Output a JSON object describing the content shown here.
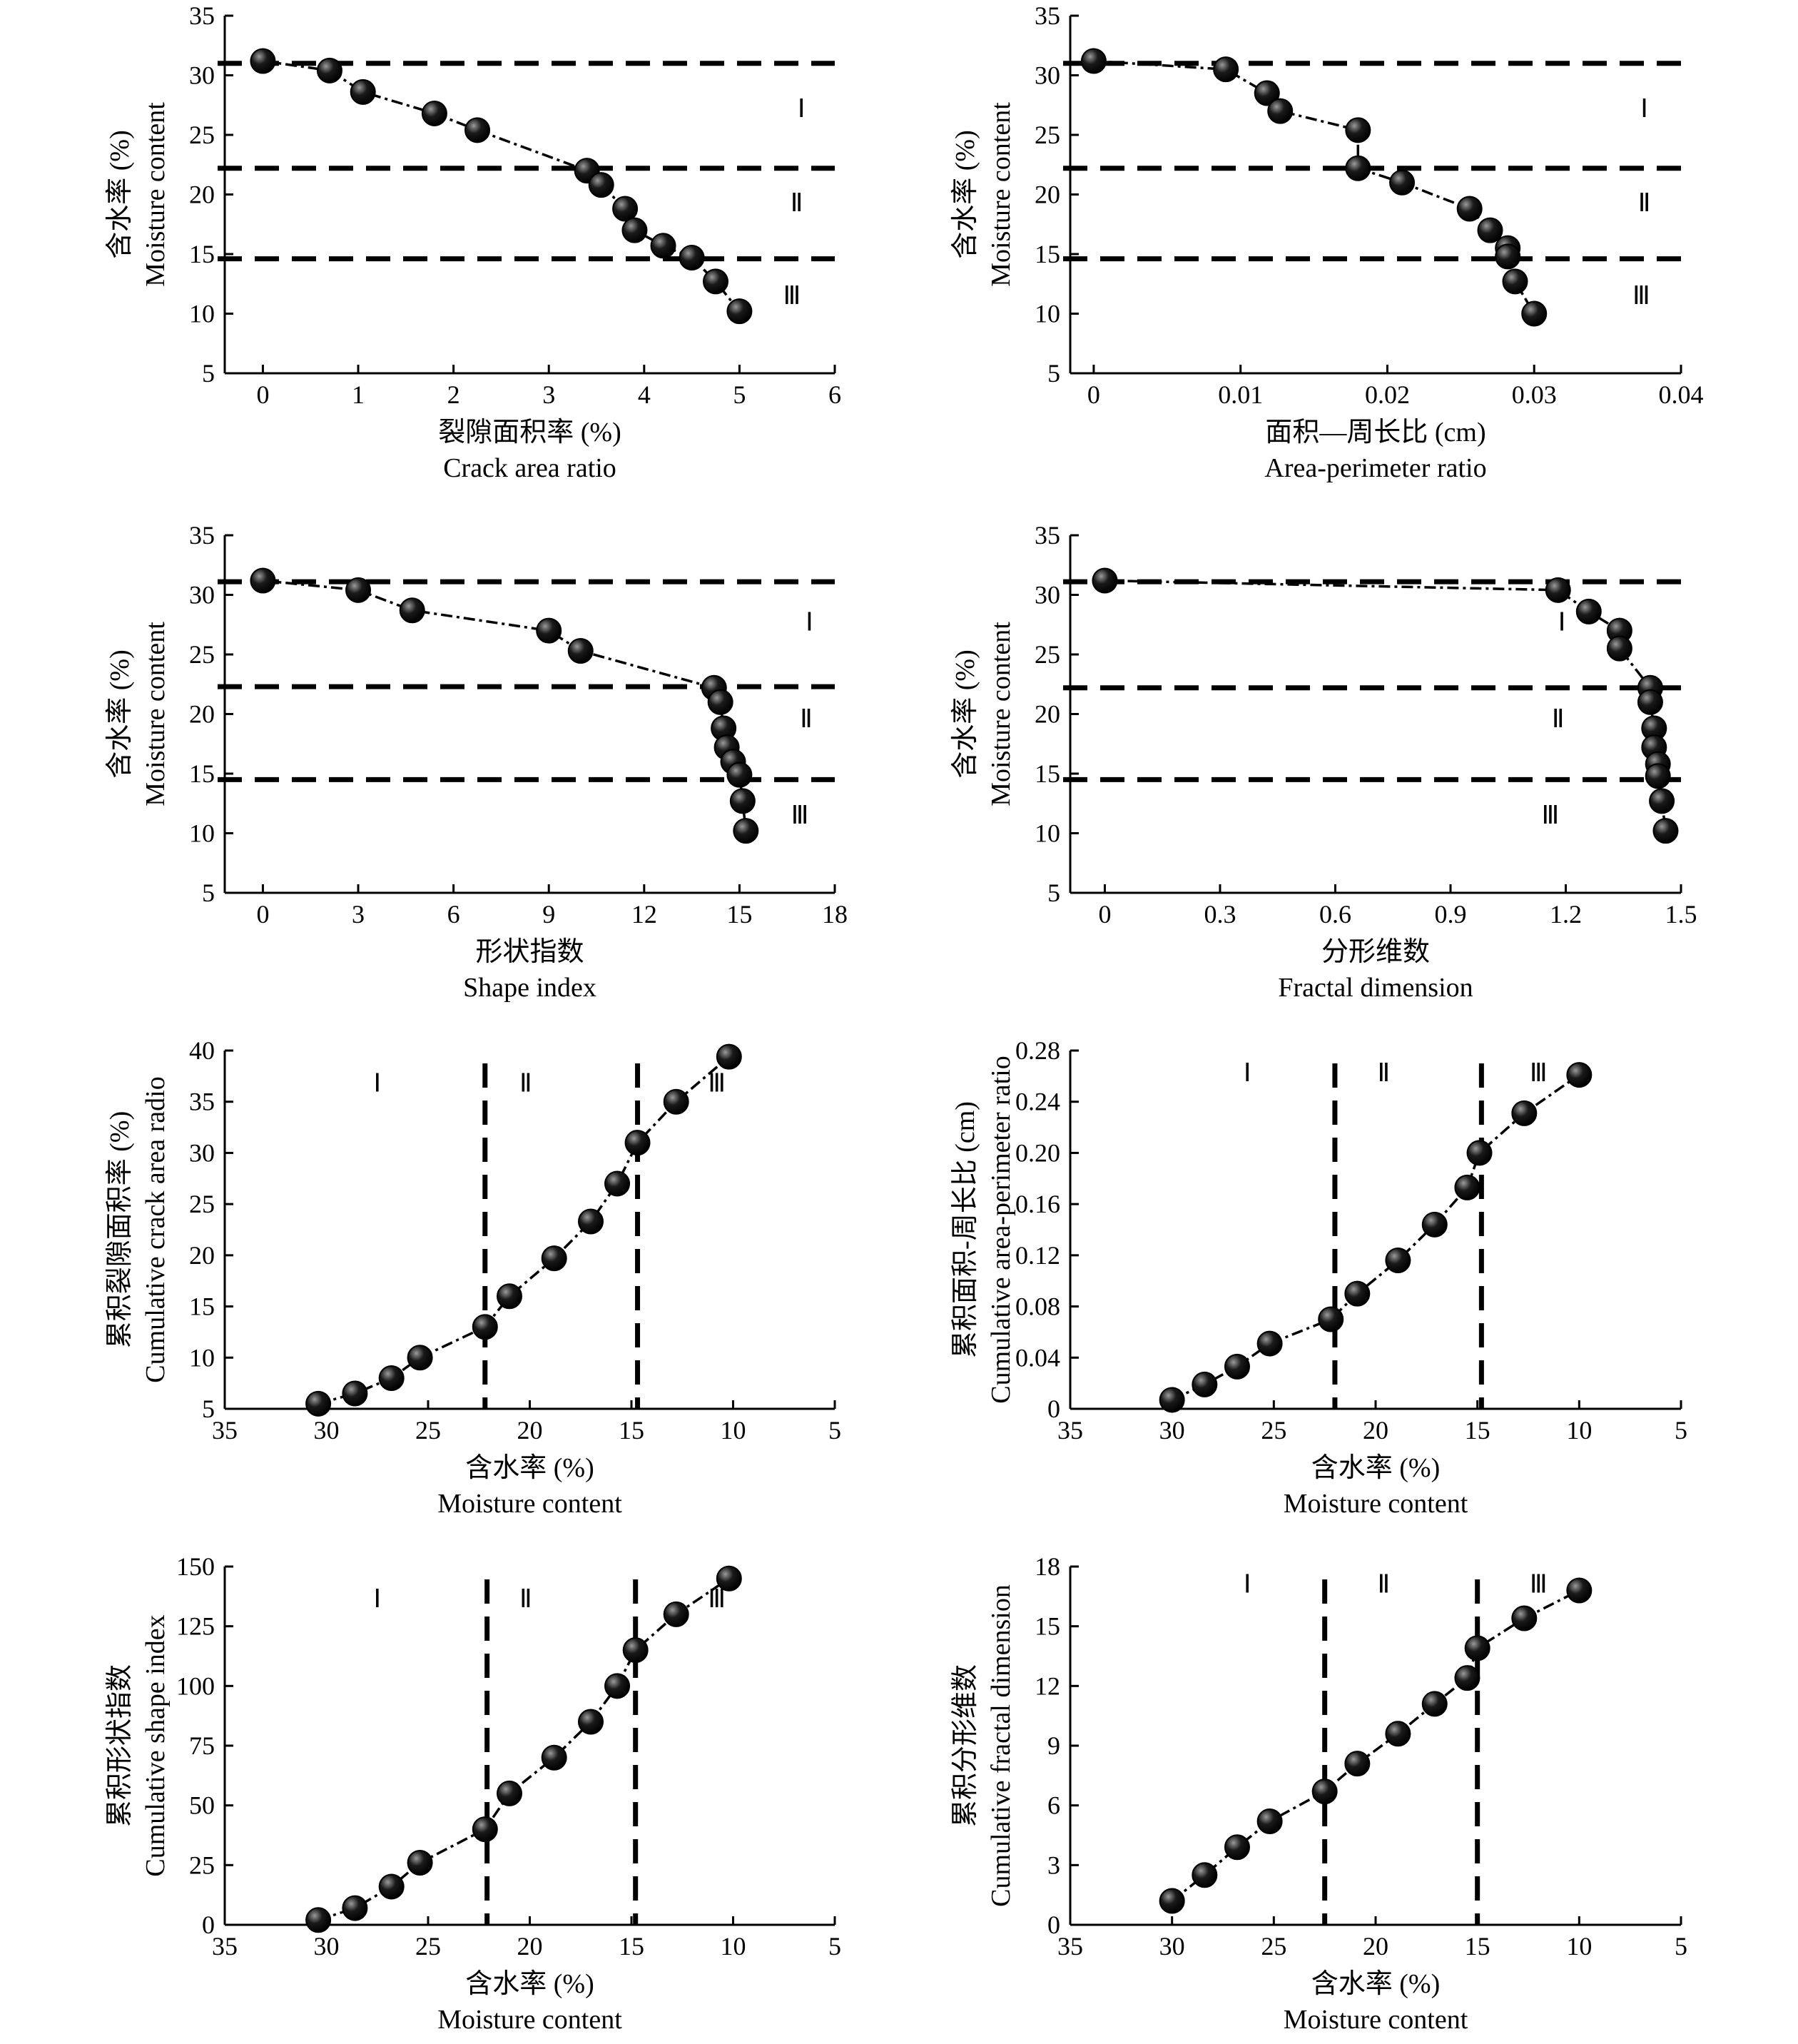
{
  "colors": {
    "ink": "#000000",
    "marker_fill": "#1a1a1a",
    "marker_highlight": "#9a9a9a",
    "background": "#ffffff"
  },
  "chart_data": [
    {
      "type": "scatter",
      "orientation": "y_is_moisture",
      "xlabel_cn": "裂隙面积率 (%)",
      "xlabel_en": "Crack area ratio",
      "ylabel_cn": "含水率 (%)",
      "ylabel_en": "Moisture content",
      "xlim": [
        -0.4,
        6
      ],
      "ylim": [
        5,
        35
      ],
      "xticks": [
        "0",
        "1",
        "2",
        "3",
        "4",
        "5",
        "6"
      ],
      "yticks": [
        "5",
        "10",
        "15",
        "20",
        "25",
        "30",
        "35"
      ],
      "x": [
        0,
        0.7,
        1.05,
        1.8,
        2.25,
        3.4,
        3.55,
        3.8,
        3.9,
        4.2,
        4.5,
        4.75,
        5.0
      ],
      "y": [
        31.2,
        30.4,
        28.6,
        26.8,
        25.4,
        22.0,
        20.8,
        18.8,
        17.0,
        15.7,
        14.7,
        12.7,
        10.2
      ],
      "reference_lines": [
        31.0,
        22.2,
        14.6
      ],
      "zones": [
        "Ⅰ",
        "Ⅱ",
        "Ⅲ"
      ],
      "zone_label_pos": [
        [
          5.65,
          26.5
        ],
        [
          5.6,
          18.6
        ],
        [
          5.55,
          10.8
        ]
      ]
    },
    {
      "type": "scatter",
      "orientation": "y_is_moisture",
      "xlabel_cn": "面积—周长比 (cm)",
      "xlabel_en": "Area-perimeter ratio",
      "ylabel_cn": "含水率 (%)",
      "ylabel_en": "Moisture content",
      "xlim": [
        -0.0016,
        0.04
      ],
      "ylim": [
        5,
        35
      ],
      "xticks": [
        "0",
        "0.01",
        "0.02",
        "0.03",
        "0.04"
      ],
      "yticks": [
        "5",
        "10",
        "15",
        "20",
        "25",
        "30",
        "35"
      ],
      "x": [
        0,
        0.009,
        0.0118,
        0.0127,
        0.018,
        0.018,
        0.021,
        0.0256,
        0.027,
        0.0282,
        0.0282,
        0.0287,
        0.03
      ],
      "y": [
        31.2,
        30.5,
        28.5,
        27.0,
        25.4,
        22.2,
        21.0,
        18.8,
        17.0,
        15.5,
        14.8,
        12.7,
        10.0
      ],
      "reference_lines": [
        31.0,
        22.2,
        14.6
      ],
      "zones": [
        "Ⅰ",
        "Ⅱ",
        "Ⅲ"
      ],
      "zone_label_pos": [
        [
          0.0375,
          26.5
        ],
        [
          0.0375,
          18.6
        ],
        [
          0.0373,
          10.8
        ]
      ]
    },
    {
      "type": "scatter",
      "orientation": "y_is_moisture",
      "xlabel_cn": "形状指数",
      "xlabel_en": "Shape index",
      "ylabel_cn": "含水率 (%)",
      "ylabel_en": "Moisture content",
      "xlim": [
        -1.2,
        18
      ],
      "ylim": [
        5,
        35
      ],
      "xticks": [
        "0",
        "3",
        "6",
        "9",
        "12",
        "15",
        "18"
      ],
      "yticks": [
        "5",
        "10",
        "15",
        "20",
        "25",
        "30",
        "35"
      ],
      "x": [
        0,
        3,
        4.7,
        9,
        10,
        14.2,
        14.4,
        14.5,
        14.6,
        14.8,
        15.0,
        15.1,
        15.2
      ],
      "y": [
        31.2,
        30.4,
        28.7,
        27.0,
        25.3,
        22.2,
        21.0,
        18.8,
        17.2,
        16.0,
        14.9,
        12.7,
        10.2
      ],
      "reference_lines": [
        31.1,
        22.3,
        14.5
      ],
      "zones": [
        "Ⅰ",
        "Ⅱ",
        "Ⅲ"
      ],
      "zone_label_pos": [
        [
          17.2,
          27.0
        ],
        [
          17.1,
          18.9
        ],
        [
          16.9,
          10.8
        ]
      ]
    },
    {
      "type": "scatter",
      "orientation": "y_is_moisture",
      "xlabel_cn": "分形维数",
      "xlabel_en": "Fractal dimension",
      "ylabel_cn": "含水率 (%)",
      "ylabel_en": "Moisture content",
      "xlim": [
        -0.09,
        1.5
      ],
      "ylim": [
        5,
        35
      ],
      "xticks": [
        "0",
        "0.3",
        "0.6",
        "0.9",
        "1.2",
        "1.5"
      ],
      "yticks": [
        "5",
        "10",
        "15",
        "20",
        "25",
        "30",
        "35"
      ],
      "x": [
        0,
        1.18,
        1.26,
        1.34,
        1.34,
        1.42,
        1.42,
        1.43,
        1.43,
        1.44,
        1.44,
        1.45,
        1.46
      ],
      "y": [
        31.2,
        30.4,
        28.6,
        27.0,
        25.5,
        22.2,
        21.0,
        18.8,
        17.2,
        15.8,
        14.8,
        12.7,
        10.2
      ],
      "reference_lines": [
        31.1,
        22.2,
        14.5
      ],
      "zones": [
        "Ⅰ",
        "Ⅱ",
        "Ⅲ"
      ],
      "zone_label_pos": [
        [
          1.19,
          27.0
        ],
        [
          1.18,
          18.9
        ],
        [
          1.16,
          10.8
        ]
      ]
    },
    {
      "type": "scatter",
      "orientation": "x_is_moisture",
      "xlabel_cn": "含水率 (%)",
      "xlabel_en": "Moisture content",
      "ylabel_cn": "累积裂隙面积率 (%)",
      "ylabel_en": "Cumulative crack area radio",
      "xlim": [
        35,
        5
      ],
      "ylim": [
        5,
        40
      ],
      "xticks": [
        "35",
        "30",
        "25",
        "20",
        "15",
        "10",
        "5"
      ],
      "yticks": [
        "5",
        "10",
        "15",
        "20",
        "25",
        "30",
        "35",
        "40"
      ],
      "x": [
        30.4,
        28.6,
        26.8,
        25.4,
        22.2,
        21.0,
        18.8,
        17.0,
        15.7,
        14.7,
        12.8,
        10.2
      ],
      "y": [
        5.5,
        6.5,
        8.0,
        10.0,
        13.0,
        16.0,
        19.7,
        23.3,
        27.0,
        31.0,
        35.0,
        39.4
      ],
      "reference_lines": [
        22.2,
        14.7
      ],
      "zones": [
        "Ⅰ",
        "Ⅱ",
        "Ⅲ"
      ],
      "zone_label_pos": [
        [
          27.5,
          36.0
        ],
        [
          20.2,
          36.0
        ],
        [
          10.8,
          36.0
        ]
      ]
    },
    {
      "type": "scatter",
      "orientation": "x_is_moisture",
      "xlabel_cn": "含水率 (%)",
      "xlabel_en": "Moisture content",
      "ylabel_cn": "累积面积-周长比 (cm)",
      "ylabel_en": "Cumulative area-perimeter ratio",
      "xlim": [
        35,
        5
      ],
      "ylim": [
        0,
        0.28
      ],
      "xticks": [
        "35",
        "30",
        "25",
        "20",
        "15",
        "10",
        "5"
      ],
      "yticks": [
        "0",
        "0.04",
        "0.08",
        "0.12",
        "0.16",
        "0.20",
        "0.24",
        "0.28"
      ],
      "x": [
        30.0,
        28.4,
        26.8,
        25.2,
        22.2,
        20.9,
        18.9,
        17.1,
        15.5,
        14.9,
        12.7,
        10.0
      ],
      "y": [
        0.007,
        0.019,
        0.033,
        0.051,
        0.07,
        0.09,
        0.116,
        0.144,
        0.173,
        0.2,
        0.231,
        0.261
      ],
      "reference_lines": [
        22.0,
        14.8
      ],
      "zones": [
        "Ⅰ",
        "Ⅱ",
        "Ⅲ"
      ],
      "zone_label_pos": [
        [
          26.3,
          0.256
        ],
        [
          19.6,
          0.256
        ],
        [
          12.0,
          0.256
        ]
      ]
    },
    {
      "type": "scatter",
      "orientation": "x_is_moisture",
      "xlabel_cn": "含水率 (%)",
      "xlabel_en": "Moisture content",
      "ylabel_cn": "累积形状指数",
      "ylabel_en": "Cumulative shape index",
      "xlim": [
        35,
        5
      ],
      "ylim": [
        0,
        150
      ],
      "xticks": [
        "35",
        "30",
        "25",
        "20",
        "15",
        "10",
        "5"
      ],
      "yticks": [
        "0",
        "25",
        "50",
        "75",
        "100",
        "125",
        "150"
      ],
      "x": [
        30.4,
        28.6,
        26.8,
        25.4,
        22.2,
        21.0,
        18.8,
        17.0,
        15.7,
        14.8,
        12.8,
        10.2
      ],
      "y": [
        2,
        7,
        16,
        26,
        40,
        55,
        70,
        85,
        100,
        115,
        130,
        145
      ],
      "reference_lines": [
        22.1,
        14.8
      ],
      "zones": [
        "Ⅰ",
        "Ⅱ",
        "Ⅲ"
      ],
      "zone_label_pos": [
        [
          27.5,
          133.0
        ],
        [
          20.2,
          133.0
        ],
        [
          10.8,
          133.0
        ]
      ]
    },
    {
      "type": "scatter",
      "orientation": "x_is_moisture",
      "xlabel_cn": "含水率 (%)",
      "xlabel_en": "Moisture content",
      "ylabel_cn": "累积分形维数",
      "ylabel_en": "Cumulative fractal dimension",
      "xlim": [
        35,
        5
      ],
      "ylim": [
        0,
        18
      ],
      "xticks": [
        "35",
        "30",
        "25",
        "20",
        "15",
        "10",
        "5"
      ],
      "yticks": [
        "0",
        "3",
        "6",
        "9",
        "12",
        "15",
        "18"
      ],
      "x": [
        30.0,
        28.4,
        26.8,
        25.2,
        22.5,
        20.9,
        18.9,
        17.1,
        15.5,
        15.0,
        12.7,
        10.0
      ],
      "y": [
        1.2,
        2.5,
        3.9,
        5.2,
        6.7,
        8.1,
        9.6,
        11.1,
        12.4,
        13.9,
        15.4,
        16.8
      ],
      "reference_lines": [
        22.5,
        15.0
      ],
      "zones": [
        "Ⅰ",
        "Ⅱ",
        "Ⅲ"
      ],
      "zone_label_pos": [
        [
          26.3,
          16.7
        ],
        [
          19.6,
          16.7
        ],
        [
          12.0,
          16.7
        ]
      ]
    }
  ]
}
